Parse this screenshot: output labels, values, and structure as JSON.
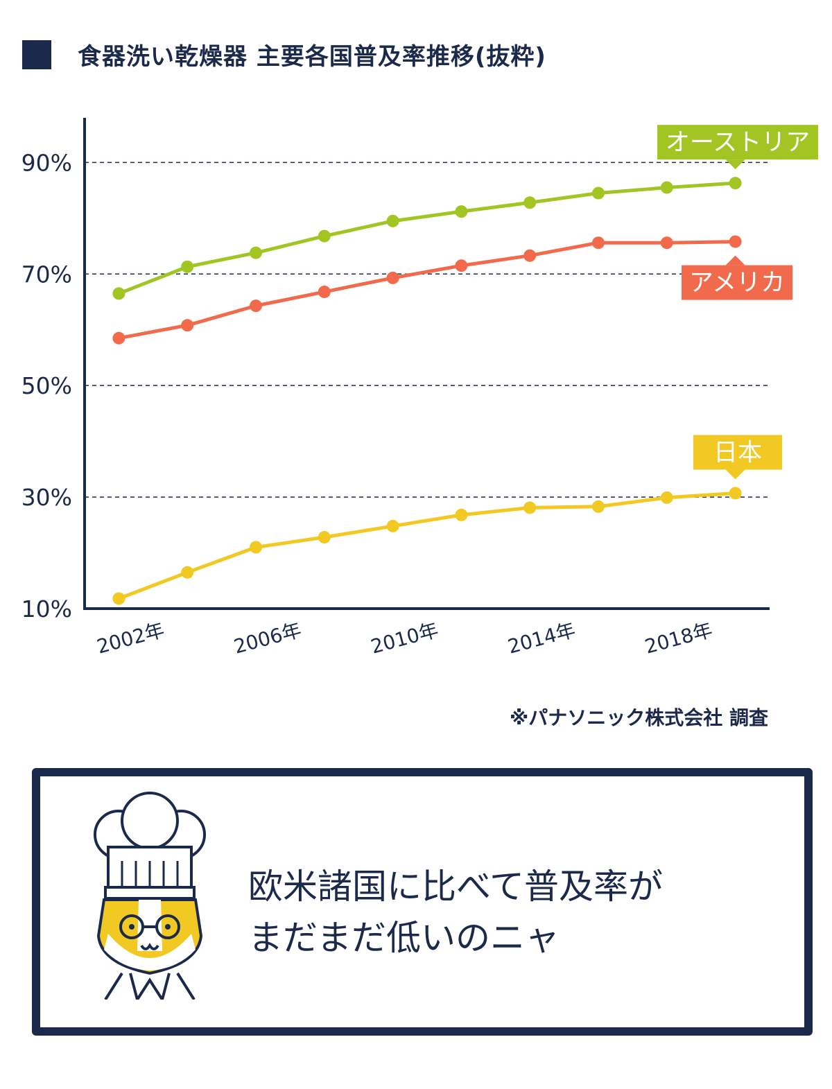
{
  "title": "食器洗い乾燥器 主要各国普及率推移(抜粋)",
  "source_note": "※パナソニック株式会社 調査",
  "message": {
    "line1": "欧米諸国に比べて普及率が",
    "line2": "まだまだ低いのニャ"
  },
  "colors": {
    "navy": "#1b2a4a",
    "austria": "#a3c523",
    "usa": "#f06a4b",
    "japan": "#f2c922"
  },
  "chart_data": {
    "type": "line",
    "title": "食器洗い乾燥器 主要各国普及率推移(抜粋)",
    "xlabel": "",
    "ylabel": "",
    "x": [
      2001,
      2003,
      2005,
      2007,
      2009,
      2011,
      2013,
      2015,
      2017,
      2019
    ],
    "xticks": [
      2002,
      2006,
      2010,
      2014,
      2018
    ],
    "xtick_labels": [
      "2002年",
      "2006年",
      "2010年",
      "2014年",
      "2018年"
    ],
    "yticks": [
      10,
      30,
      50,
      70,
      90
    ],
    "ytick_labels": [
      "10%",
      "30%",
      "50%",
      "70%",
      "90%"
    ],
    "gridlines_y": [
      30,
      50,
      70,
      90
    ],
    "ylim": [
      10,
      98
    ],
    "xlim": [
      2000.0,
      2020.0
    ],
    "series": [
      {
        "name": "オーストリア",
        "color": "#a3c523",
        "values": [
          66.5,
          71.3,
          73.8,
          76.8,
          79.5,
          81.2,
          82.8,
          84.5,
          85.5,
          86.3
        ]
      },
      {
        "name": "アメリカ",
        "color": "#f06a4b",
        "values": [
          58.5,
          60.8,
          64.3,
          66.8,
          69.3,
          71.5,
          73.3,
          75.6,
          75.6,
          75.8
        ]
      },
      {
        "name": "日本",
        "color": "#f2c922",
        "values": [
          11.8,
          16.5,
          21.0,
          22.8,
          24.8,
          26.8,
          28.1,
          28.3,
          29.9,
          30.7
        ]
      }
    ]
  }
}
